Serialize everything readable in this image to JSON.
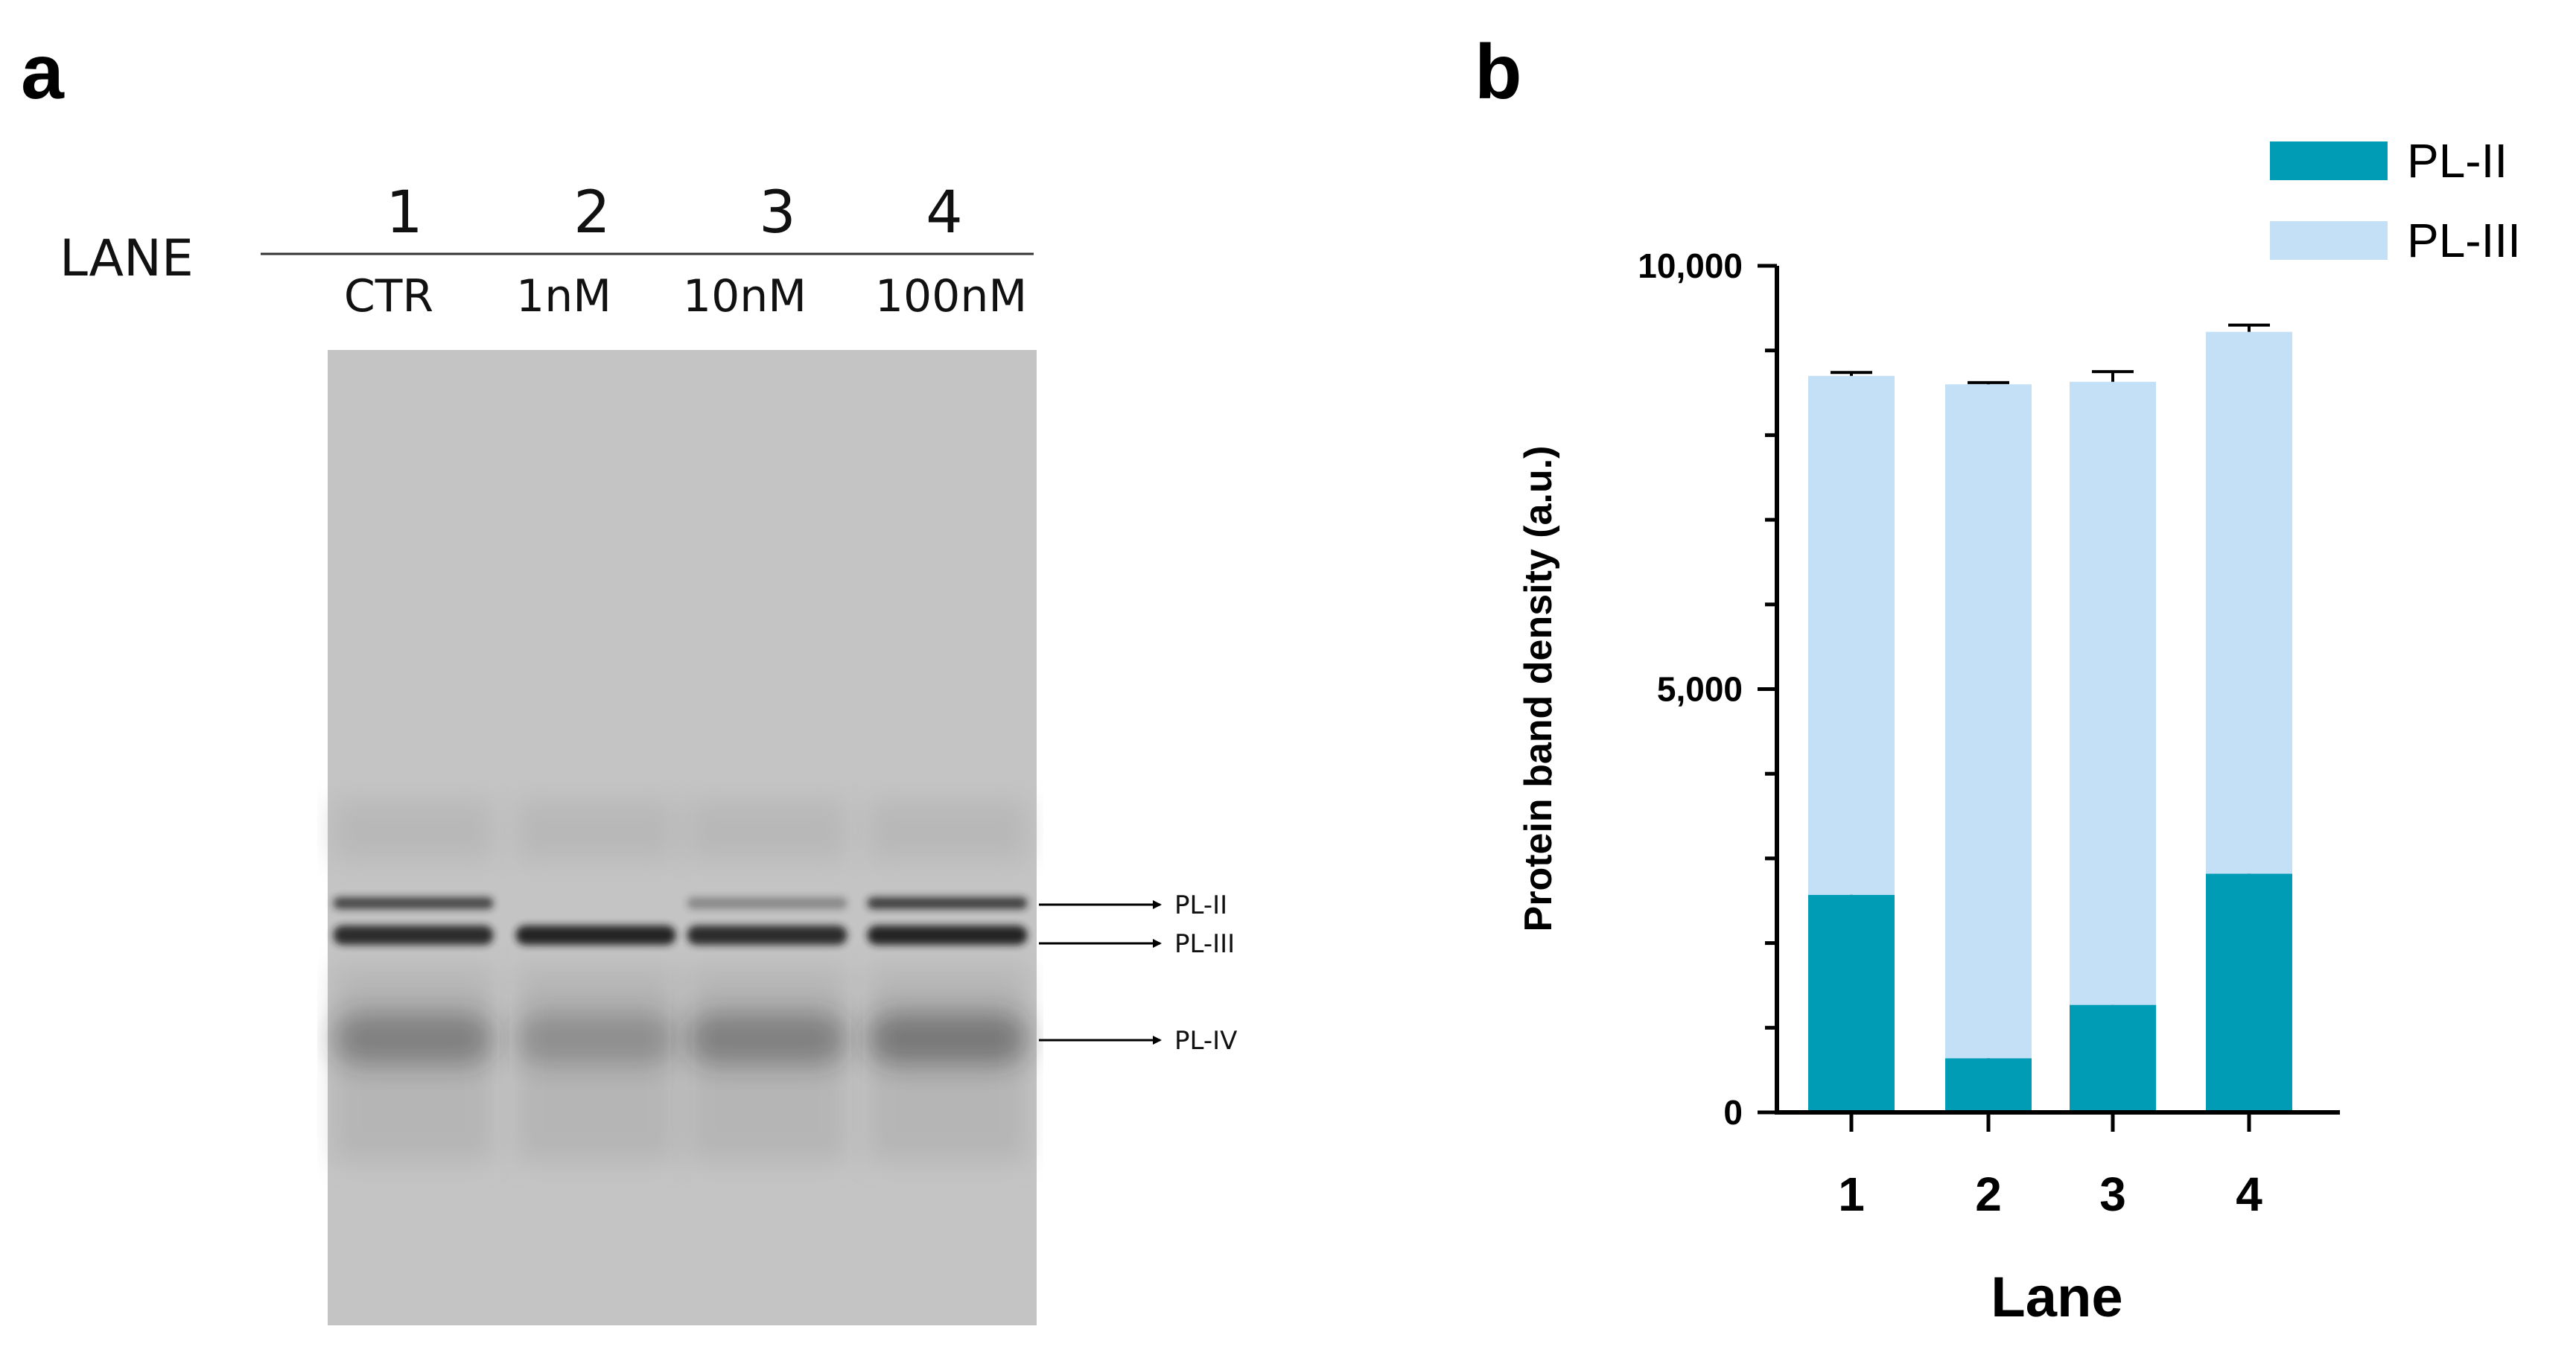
{
  "panel_a": {
    "letter": "a",
    "lane_header": "LANE",
    "lanes": [
      {
        "number": "1",
        "condition": "CTR"
      },
      {
        "number": "2",
        "condition": "1nM"
      },
      {
        "number": "3",
        "condition": "10nM"
      },
      {
        "number": "4",
        "condition": "100nM"
      }
    ],
    "band_labels": [
      "PL-II",
      "PL-III",
      "PL-IV"
    ],
    "band_intensity": {
      "PL-II": [
        0.75,
        0.0,
        0.35,
        0.8
      ],
      "PL-III": [
        0.9,
        0.95,
        0.9,
        0.95
      ],
      "PL-IV": [
        0.35,
        0.25,
        0.35,
        0.4
      ]
    }
  },
  "panel_b": {
    "letter": "b"
  },
  "chart_data": {
    "type": "bar",
    "stacked": true,
    "categories": [
      "1",
      "2",
      "3",
      "4"
    ],
    "series": [
      {
        "name": "PL-II",
        "values": [
          2570,
          640,
          1270,
          2820
        ],
        "errors": [
          40,
          30,
          40,
          40
        ],
        "color": "#009cb5"
      },
      {
        "name": "PL-III",
        "values": [
          6130,
          7960,
          7360,
          6400
        ],
        "errors": [
          40,
          20,
          120,
          80
        ],
        "color": "#c3e0f7"
      }
    ],
    "ylim": [
      0,
      10000
    ],
    "yticks": [
      "0",
      "5,000",
      "10,000"
    ],
    "ytick_values": [
      0,
      5000,
      10000
    ],
    "ylabel": "Protein band density (a.u.)",
    "xlabel": "Lane",
    "legend_position": "top-right",
    "grid": false
  }
}
